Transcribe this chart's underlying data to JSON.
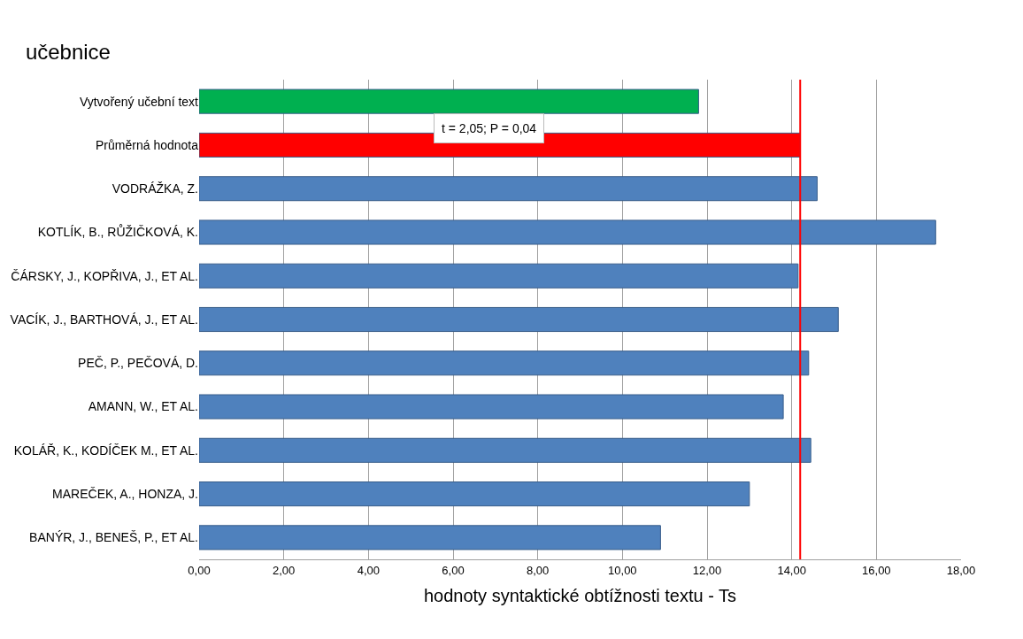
{
  "chart_data": {
    "type": "bar",
    "orientation": "horizontal",
    "title": "učebnice",
    "xlabel": "hodnoty syntaktické obtížnosti textu - Ts",
    "categories": [
      "Vytvořený učební text",
      "Průměrná hodnota",
      "VODRÁŽKA, Z.",
      "KOTLÍK, B., RŮŽIČKOVÁ, K.",
      "ČÁRSKY, J., KOPŘIVA, J., ET AL.",
      "VACÍK, J., BARTHOVÁ, J., ET AL.",
      "PEČ, P., PEČOVÁ, D.",
      "AMANN, W., ET AL.",
      "KOLÁŘ, K., KODÍČEK M., ET AL.",
      "MAREČEK, A., HONZA, J.",
      "BANÝR, J., BENEŠ, P., ET AL."
    ],
    "values": [
      11.8,
      14.2,
      14.6,
      17.4,
      14.15,
      15.1,
      14.4,
      13.8,
      14.45,
      13.0,
      10.9
    ],
    "colors": [
      "#00b050",
      "#ff0000",
      "#4f81bd",
      "#4f81bd",
      "#4f81bd",
      "#4f81bd",
      "#4f81bd",
      "#4f81bd",
      "#4f81bd",
      "#4f81bd",
      "#4f81bd"
    ],
    "xlim": [
      0,
      18
    ],
    "xticks": [
      {
        "value": 0,
        "label": "0,00"
      },
      {
        "value": 2,
        "label": "2,00"
      },
      {
        "value": 4,
        "label": "4,00"
      },
      {
        "value": 6,
        "label": "6,00"
      },
      {
        "value": 8,
        "label": "8,00"
      },
      {
        "value": 10,
        "label": "10,00"
      },
      {
        "value": 12,
        "label": "12,00"
      },
      {
        "value": 14,
        "label": "14,00"
      },
      {
        "value": 16,
        "label": "16,00"
      },
      {
        "value": 18,
        "label": "18,00"
      }
    ],
    "ref_lines": [
      {
        "axis": "x",
        "value": 14.2,
        "color": "#ff0000"
      }
    ],
    "annotations": [
      "t = 2,05; P = 0,04"
    ],
    "grid": "x"
  }
}
